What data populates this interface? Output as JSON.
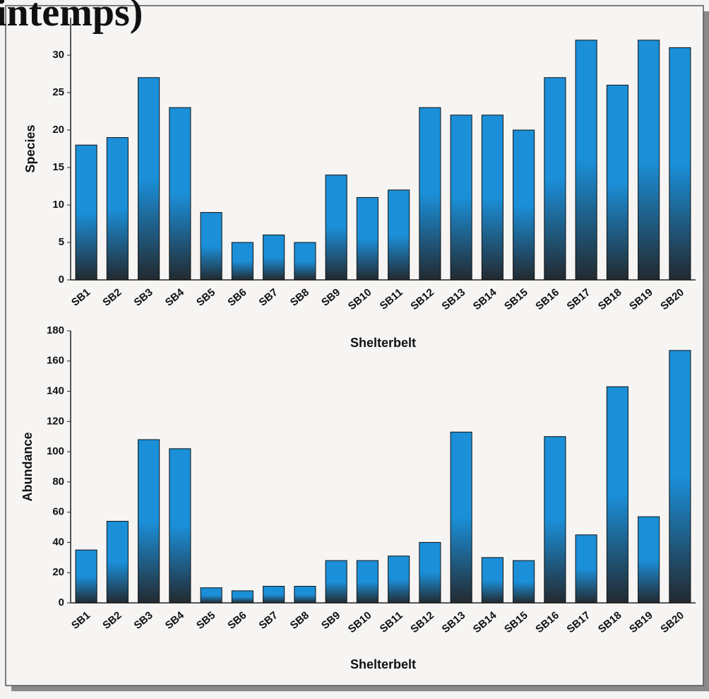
{
  "title": "intemps)",
  "chart_data": [
    {
      "type": "bar",
      "ylabel": "Species",
      "xlabel": "Shelterbelt",
      "categories": [
        "SB1",
        "SB2",
        "SB3",
        "SB4",
        "SB5",
        "SB6",
        "SB7",
        "SB8",
        "SB9",
        "SB10",
        "SB11",
        "SB12",
        "SB13",
        "SB14",
        "SB15",
        "SB16",
        "SB17",
        "SB18",
        "SB19",
        "SB20"
      ],
      "values": [
        18,
        19,
        27,
        23,
        9,
        5,
        6,
        5,
        14,
        11,
        12,
        23,
        22,
        22,
        20,
        27,
        32,
        26,
        32,
        31
      ],
      "color": "#1b8fd8",
      "ylim": [
        0,
        35
      ],
      "yticks": [
        0,
        5,
        10,
        15,
        20,
        25,
        30
      ],
      "grid": false
    },
    {
      "type": "bar",
      "ylabel": "Abundance",
      "xlabel": "Shelterbelt",
      "categories": [
        "SB1",
        "SB2",
        "SB3",
        "SB4",
        "SB5",
        "SB6",
        "SB7",
        "SB8",
        "SB9",
        "SB10",
        "SB11",
        "SB12",
        "SB13",
        "SB14",
        "SB15",
        "SB16",
        "SB17",
        "SB18",
        "SB19",
        "SB20"
      ],
      "values": [
        35,
        54,
        108,
        102,
        10,
        8,
        11,
        11,
        28,
        28,
        31,
        40,
        113,
        30,
        28,
        110,
        45,
        143,
        57,
        167
      ],
      "color": "#1b8fd8",
      "ylim": [
        0,
        180
      ],
      "yticks": [
        0,
        20,
        40,
        60,
        80,
        100,
        120,
        140,
        160,
        180
      ],
      "grid": false
    }
  ]
}
